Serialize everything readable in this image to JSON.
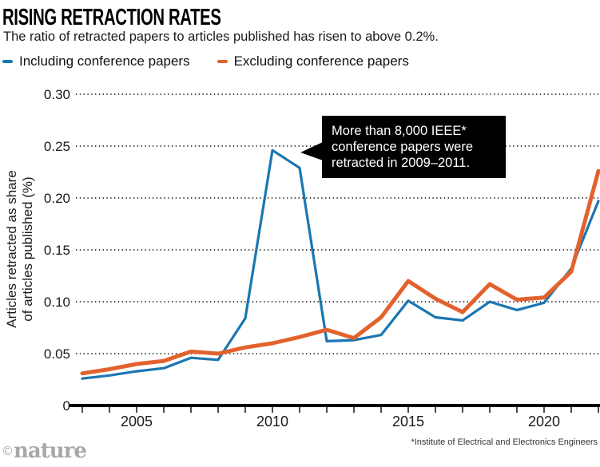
{
  "header": {
    "title": "RISING RETRACTION RATES",
    "subtitle": "The ratio of retracted papers to articles published has risen to above 0.2%."
  },
  "legend": {
    "items": [
      {
        "label": "Including conference papers",
        "color": "#1b76b2"
      },
      {
        "label": "Excluding conference papers",
        "color": "#e2622d"
      }
    ]
  },
  "annotation": {
    "lines": [
      "More than 8,000 IEEE*",
      "conference papers were",
      "retracted in 2009–2011."
    ]
  },
  "footnote": "*Institute of Electrical and Electronics Engineers",
  "logo": {
    "copyright": "©",
    "text": "nature"
  },
  "chart_data": {
    "type": "line",
    "title": "RISING RETRACTION RATES",
    "x": [
      2003,
      2004,
      2005,
      2006,
      2007,
      2008,
      2009,
      2010,
      2011,
      2012,
      2013,
      2014,
      2015,
      2016,
      2017,
      2018,
      2019,
      2020,
      2021,
      2022
    ],
    "series": [
      {
        "name": "Including conference papers",
        "color": "#1b76b2",
        "stroke_width": 3.2,
        "values": [
          0.026,
          0.029,
          0.033,
          0.036,
          0.046,
          0.044,
          0.084,
          0.246,
          0.229,
          0.062,
          0.063,
          0.068,
          0.101,
          0.085,
          0.082,
          0.1,
          0.092,
          0.099,
          0.132,
          0.197
        ]
      },
      {
        "name": "Excluding conference papers",
        "color": "#e2622d",
        "stroke_width": 5,
        "values": [
          0.031,
          0.035,
          0.04,
          0.043,
          0.052,
          0.05,
          0.056,
          0.06,
          0.066,
          0.073,
          0.065,
          0.085,
          0.12,
          0.103,
          0.09,
          0.117,
          0.102,
          0.104,
          0.129,
          0.226
        ]
      }
    ],
    "ylabel_lines": [
      "Articles retracted as share",
      "of articles published (%)"
    ],
    "yticks": [
      {
        "v": 0,
        "label": "0"
      },
      {
        "v": 0.05,
        "label": "0.05"
      },
      {
        "v": 0.1,
        "label": "0.10"
      },
      {
        "v": 0.15,
        "label": "0.15"
      },
      {
        "v": 0.2,
        "label": "0.20"
      },
      {
        "v": 0.25,
        "label": "0.25"
      },
      {
        "v": 0.3,
        "label": "0.30"
      }
    ],
    "xticks": [
      2005,
      2010,
      2015,
      2020
    ],
    "xlim": [
      2003,
      2022
    ],
    "ylim": [
      0,
      0.3
    ],
    "grid": "horizontal dotted",
    "legend_position": "top-left"
  }
}
